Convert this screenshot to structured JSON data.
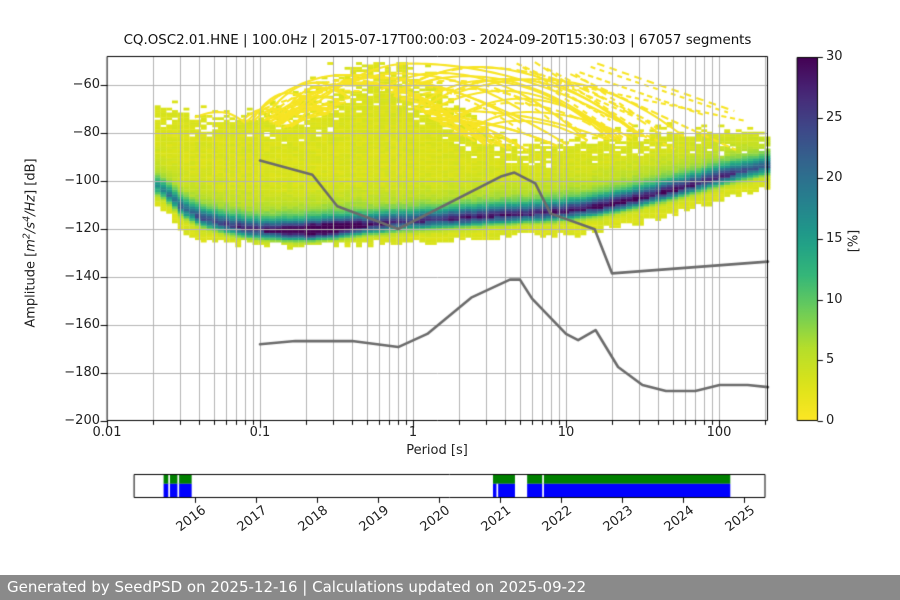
{
  "header": {
    "title": "CQ.OSC2.01.HNE | 100.0Hz | 2015-07-17T00:00:03 - 2024-09-20T15:30:03 | 67057 segments"
  },
  "chart_data": {
    "type": "heatmap",
    "title": "CQ.OSC2.01.HNE | 100.0Hz | 2015-07-17T00:00:03 - 2024-09-20T15:30:03 | 67057 segments",
    "xlabel": "Period [s]",
    "ylabel_full": "Amplitude [m²/s⁴/Hz] [dB]",
    "ylabel_parts": {
      "prefix": "Amplitude [",
      "m": "m",
      "sup1": "2",
      "mid": "/s",
      "sup2": "4",
      "tail": "/Hz",
      "suffix": "] [dB]"
    },
    "x_scale": "log",
    "xlim": [
      0.01,
      209
    ],
    "ylim": [
      -200,
      -48
    ],
    "x_ticks": [
      0.01,
      0.1,
      1,
      10,
      100
    ],
    "y_ticks": [
      -60,
      -80,
      -100,
      -120,
      -140,
      -160,
      -180,
      -200
    ],
    "grid": true,
    "colorbar": {
      "label": "[%]",
      "min": 0,
      "max": 30,
      "ticks": [
        0,
        5,
        10,
        15,
        20,
        25,
        30
      ],
      "colormap": "viridis_r"
    },
    "ppsd_density": {
      "note": "approximate probability model read from pixels: mode ridge of PPSD with percent peak, plus low-probability cloud envelope",
      "base_pct": 3,
      "periods": [
        0.021,
        0.025,
        0.03,
        0.04,
        0.055,
        0.08,
        0.1,
        0.15,
        0.2,
        0.3,
        0.4,
        0.5,
        0.7,
        1,
        1.5,
        2,
        3,
        5,
        7,
        10,
        15,
        20,
        30,
        50,
        70,
        100,
        150,
        209
      ],
      "cloud_top": [
        -68,
        -70,
        -71.5,
        -73,
        -75.5,
        -75,
        -73.5,
        -77,
        -74,
        -70,
        -64,
        -60,
        -62,
        -68,
        -75,
        -80,
        -84,
        -86,
        -86,
        -84,
        -82.5,
        -82,
        -81,
        -80.5,
        -80,
        -80,
        -80,
        -80.5
      ],
      "cloud_bottom": [
        -110,
        -114,
        -121,
        -123.5,
        -124.5,
        -125,
        -125.5,
        -126,
        -126,
        -125.5,
        -125,
        -125,
        -124.5,
        -124.5,
        -124,
        -123.5,
        -122.5,
        -121.5,
        -121.5,
        -121.5,
        -120,
        -118,
        -116,
        -112.5,
        -110,
        -107,
        -104,
        -101.5
      ],
      "ridge_db": [
        -103,
        -107,
        -112,
        -116,
        -118.5,
        -120.5,
        -121,
        -121.5,
        -121.5,
        -120.5,
        -119.5,
        -119,
        -118,
        -117.3,
        -116.6,
        -116,
        -115.2,
        -114.3,
        -113.8,
        -113,
        -111.5,
        -110,
        -107.5,
        -104,
        -101.5,
        -98.5,
        -96,
        -94
      ],
      "peak_pct": [
        11,
        13,
        14,
        16,
        17,
        19,
        20,
        24,
        28,
        28,
        23,
        21,
        19,
        18,
        19,
        20,
        20,
        19,
        20,
        20,
        21,
        21,
        21,
        20,
        19,
        18,
        16,
        14
      ]
    },
    "noise_models": {
      "color": "#6b6b6b",
      "nhnm": [
        [
          0.1,
          -91.5
        ],
        [
          0.22,
          -97.4
        ],
        [
          0.32,
          -110.5
        ],
        [
          0.8,
          -120.0
        ],
        [
          3.8,
          -98.0
        ],
        [
          4.6,
          -96.5
        ],
        [
          6.3,
          -101.0
        ],
        [
          7.9,
          -113.5
        ],
        [
          15.4,
          -120.1
        ],
        [
          20,
          -138.5
        ],
        [
          209,
          -133.6
        ]
      ],
      "nlnm": [
        [
          0.1,
          -168.0
        ],
        [
          0.17,
          -166.7
        ],
        [
          0.4,
          -166.7
        ],
        [
          0.8,
          -169.2
        ],
        [
          1.24,
          -163.7
        ],
        [
          2.4,
          -148.6
        ],
        [
          4.3,
          -141.1
        ],
        [
          5,
          -141.1
        ],
        [
          6,
          -149.0
        ],
        [
          10,
          -163.7
        ],
        [
          12,
          -166.3
        ],
        [
          15.6,
          -162.1
        ],
        [
          21.9,
          -177.5
        ],
        [
          31.6,
          -185.0
        ],
        [
          45,
          -187.5
        ],
        [
          70,
          -187.5
        ],
        [
          101,
          -185.0
        ],
        [
          154,
          -185.0
        ],
        [
          209,
          -185.9
        ]
      ]
    },
    "event_streaks": {
      "seed": 2015,
      "main_count": 38,
      "left_count": 9,
      "right_count": 12,
      "color": "#f7e424"
    },
    "availability_timeline": {
      "xlim": [
        2015.0,
        2025.36
      ],
      "year_ticks": [
        2016,
        2017,
        2018,
        2019,
        2020,
        2021,
        2022,
        2023,
        2024,
        2025
      ],
      "green": "#008000",
      "blue": "#0000ff",
      "segments": [
        [
          2015.49,
          2015.95
        ],
        [
          2020.89,
          2021.25
        ],
        [
          2021.45,
          2024.78
        ]
      ],
      "green_gaps": [
        2015.58,
        2015.73,
        2021.71
      ],
      "blue_gaps": [
        2015.58,
        2015.73,
        2020.96,
        2021.71
      ]
    }
  },
  "footer": {
    "text": "Generated by SeedPSD on 2025-12-16 | Calculations updated on 2025-09-22",
    "background": "#8a8a8a",
    "text_color": "#ffffff"
  }
}
